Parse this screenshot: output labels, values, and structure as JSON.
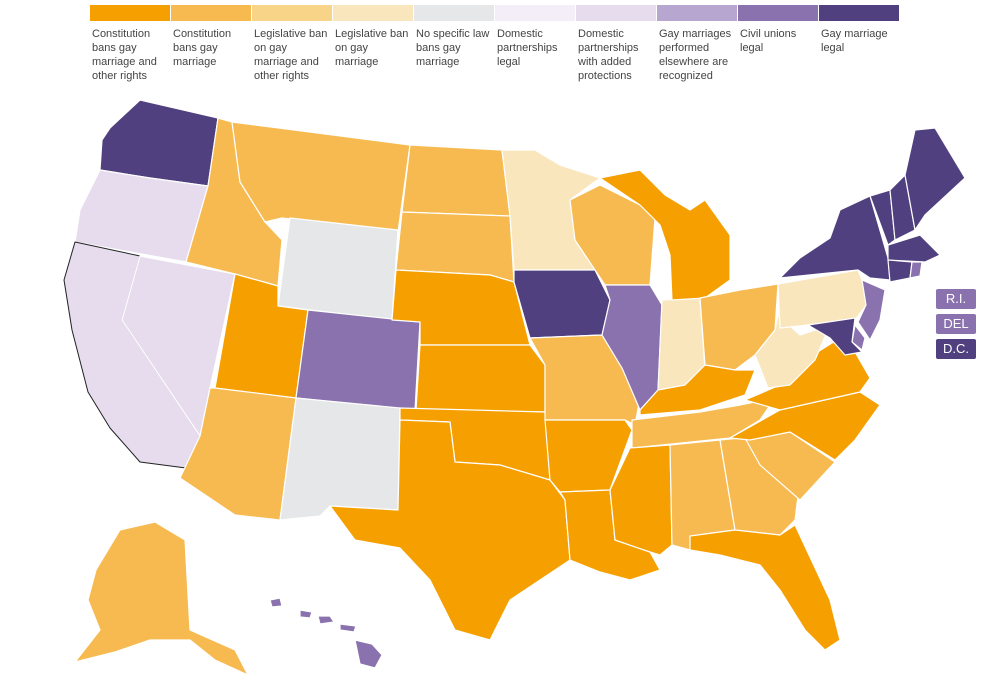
{
  "legend": [
    {
      "id": "c1",
      "label": "Constitution bans gay marriage and other rights",
      "color": "#f5a000"
    },
    {
      "id": "c2",
      "label": "Constitution bans gay marriage",
      "color": "#f6ba50"
    },
    {
      "id": "c3",
      "label": "Legislative ban on gay marriage and other rights",
      "color": "#f8d488"
    },
    {
      "id": "c4",
      "label": "Legislative ban on gay marriage",
      "color": "#f9e6bc"
    },
    {
      "id": "c5",
      "label": "No specific law bans gay marriage",
      "color": "#e6e7e8"
    },
    {
      "id": "c6",
      "label": "Domestic partnerships legal",
      "color": "#f3eef7"
    },
    {
      "id": "c7",
      "label": "Domestic partnerships with added protections",
      "color": "#e6dcee"
    },
    {
      "id": "c8",
      "label": "Gay marriages performed elsewhere are recognized",
      "color": "#b7a6cf"
    },
    {
      "id": "c9",
      "label": "Civil unions legal",
      "color": "#8a72ae"
    },
    {
      "id": "c10",
      "label": "Gay marriage legal",
      "color": "#50407f"
    }
  ],
  "badges": [
    {
      "label": "R.I.",
      "category": "c9"
    },
    {
      "label": "DEL",
      "category": "c9"
    },
    {
      "label": "D.C.",
      "category": "c10"
    }
  ],
  "states": {
    "WA": "c10",
    "OR": "c7",
    "CA": "c7",
    "NV": "c7",
    "ID": "c2",
    "MT": "c2",
    "WY": "c5",
    "UT": "c1",
    "AZ": "c2",
    "CO": "c9",
    "NM": "c5",
    "ND": "c2",
    "SD": "c2",
    "NE": "c1",
    "KS": "c1",
    "OK": "c1",
    "TX": "c1",
    "MN": "c4",
    "IA": "c10",
    "MO": "c2",
    "AR": "c1",
    "LA": "c1",
    "WI": "c2",
    "IL": "c9",
    "IN": "c4",
    "MI": "c1",
    "OH": "c2",
    "KY": "c1",
    "TN": "c2",
    "MS": "c1",
    "AL": "c2",
    "GA": "c2",
    "FL": "c1",
    "SC": "c2",
    "NC": "c1",
    "VA": "c1",
    "WV": "c4",
    "PA": "c4",
    "NY": "c10",
    "NJ": "c9",
    "MD": "c10",
    "DE": "c9",
    "VT": "c10",
    "NH": "c10",
    "ME": "c10",
    "MA": "c10",
    "CT": "c10",
    "RI": "c9",
    "AK": "c2",
    "HI": "c9"
  }
}
